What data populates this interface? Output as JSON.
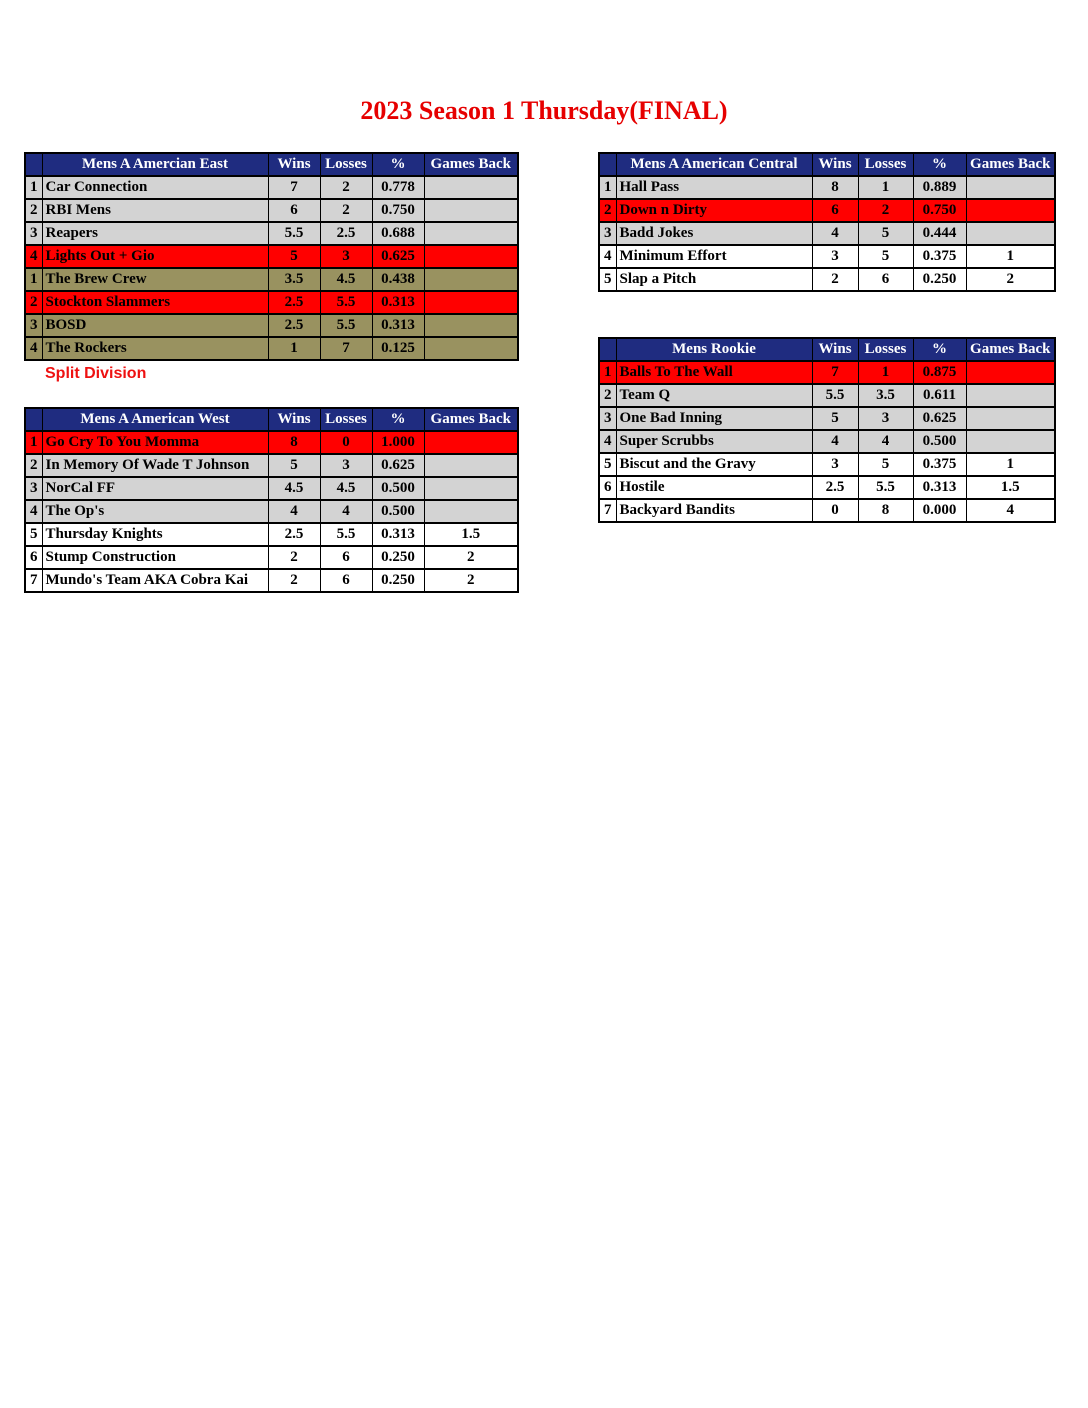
{
  "page": {
    "title": "2023 Season 1 Thursday(FINAL)",
    "background": "#FFFFFF"
  },
  "colors": {
    "title_red": "#E60000",
    "split_label_red": "#EE1111",
    "header_bg": "#1F2C80",
    "header_text": "#FFFFFF",
    "row_gray": "#D3D3D3",
    "row_red": "#FF0000",
    "row_khaki": "#999260",
    "row_white": "#FFFFFF",
    "border": "#000000"
  },
  "columns": [
    "Wins",
    "Losses",
    "%",
    "Games Back"
  ],
  "split_division_label": "Split Division",
  "tables": [
    {
      "key": "east",
      "title": "Mens A Amercian East",
      "rows": [
        {
          "rank": "1",
          "team": "Car Connection",
          "wins": "7",
          "losses": "2",
          "pct": "0.778",
          "gb": "",
          "bg": "gray"
        },
        {
          "rank": "2",
          "team": "RBI Mens",
          "wins": "6",
          "losses": "2",
          "pct": "0.750",
          "gb": "",
          "bg": "gray"
        },
        {
          "rank": "3",
          "team": "Reapers",
          "wins": "5.5",
          "losses": "2.5",
          "pct": "0.688",
          "gb": "",
          "bg": "gray"
        },
        {
          "rank": "4",
          "team": "Lights Out + Gio",
          "wins": "5",
          "losses": "3",
          "pct": "0.625",
          "gb": "",
          "bg": "red"
        },
        {
          "rank": "1",
          "team": "The Brew Crew",
          "wins": "3.5",
          "losses": "4.5",
          "pct": "0.438",
          "gb": "",
          "bg": "khaki"
        },
        {
          "rank": "2",
          "team": "Stockton Slammers",
          "wins": "2.5",
          "losses": "5.5",
          "pct": "0.313",
          "gb": "",
          "bg": "red"
        },
        {
          "rank": "3",
          "team": "BOSD",
          "wins": "2.5",
          "losses": "5.5",
          "pct": "0.313",
          "gb": "",
          "bg": "khaki"
        },
        {
          "rank": "4",
          "team": "The Rockers",
          "wins": "1",
          "losses": "7",
          "pct": "0.125",
          "gb": "",
          "bg": "khaki"
        }
      ]
    },
    {
      "key": "central",
      "title": "Mens A American Central",
      "rows": [
        {
          "rank": "1",
          "team": "Hall Pass",
          "wins": "8",
          "losses": "1",
          "pct": "0.889",
          "gb": "",
          "bg": "gray"
        },
        {
          "rank": "2",
          "team": "Down n Dirty",
          "wins": "6",
          "losses": "2",
          "pct": "0.750",
          "gb": "",
          "bg": "red"
        },
        {
          "rank": "3",
          "team": "Badd Jokes",
          "wins": "4",
          "losses": "5",
          "pct": "0.444",
          "gb": "",
          "bg": "gray"
        },
        {
          "rank": "4",
          "team": "Minimum Effort",
          "wins": "3",
          "losses": "5",
          "pct": "0.375",
          "gb": "1",
          "bg": "white"
        },
        {
          "rank": "5",
          "team": "Slap a Pitch",
          "wins": "2",
          "losses": "6",
          "pct": "0.250",
          "gb": "2",
          "bg": "white"
        }
      ]
    },
    {
      "key": "west",
      "title": "Mens A American West",
      "rows": [
        {
          "rank": "1",
          "team": "Go Cry To You Momma",
          "wins": "8",
          "losses": "0",
          "pct": "1.000",
          "gb": "",
          "bg": "red"
        },
        {
          "rank": "2",
          "team": "In Memory Of Wade T Johnson",
          "wins": "5",
          "losses": "3",
          "pct": "0.625",
          "gb": "",
          "bg": "gray"
        },
        {
          "rank": "3",
          "team": "NorCal FF",
          "wins": "4.5",
          "losses": "4.5",
          "pct": "0.500",
          "gb": "",
          "bg": "gray"
        },
        {
          "rank": "4",
          "team": "The Op's",
          "wins": "4",
          "losses": "4",
          "pct": "0.500",
          "gb": "",
          "bg": "gray"
        },
        {
          "rank": "5",
          "team": "Thursday Knights",
          "wins": "2.5",
          "losses": "5.5",
          "pct": "0.313",
          "gb": "1.5",
          "bg": "white"
        },
        {
          "rank": "6",
          "team": "Stump Construction",
          "wins": "2",
          "losses": "6",
          "pct": "0.250",
          "gb": "2",
          "bg": "white"
        },
        {
          "rank": "7",
          "team": "Mundo's Team AKA Cobra Kai",
          "wins": "2",
          "losses": "6",
          "pct": "0.250",
          "gb": "2",
          "bg": "white"
        }
      ]
    },
    {
      "key": "rookie",
      "title": "Mens Rookie",
      "rows": [
        {
          "rank": "1",
          "team": "Balls To The Wall",
          "wins": "7",
          "losses": "1",
          "pct": "0.875",
          "gb": "",
          "bg": "red"
        },
        {
          "rank": "2",
          "team": "Team Q",
          "wins": "5.5",
          "losses": "3.5",
          "pct": "0.611",
          "gb": "",
          "bg": "gray"
        },
        {
          "rank": "3",
          "team": "One Bad Inning",
          "wins": "5",
          "losses": "3",
          "pct": "0.625",
          "gb": "",
          "bg": "gray"
        },
        {
          "rank": "4",
          "team": "Super Scrubbs",
          "wins": "4",
          "losses": "4",
          "pct": "0.500",
          "gb": "",
          "bg": "gray"
        },
        {
          "rank": "5",
          "team": "Biscut and the Gravy",
          "wins": "3",
          "losses": "5",
          "pct": "0.375",
          "gb": "1",
          "bg": "white"
        },
        {
          "rank": "6",
          "team": "Hostile",
          "wins": "2.5",
          "losses": "5.5",
          "pct": "0.313",
          "gb": "1.5",
          "bg": "white"
        },
        {
          "rank": "7",
          "team": "Backyard Bandits",
          "wins": "0",
          "losses": "8",
          "pct": "0.000",
          "gb": "4",
          "bg": "white"
        }
      ]
    }
  ]
}
